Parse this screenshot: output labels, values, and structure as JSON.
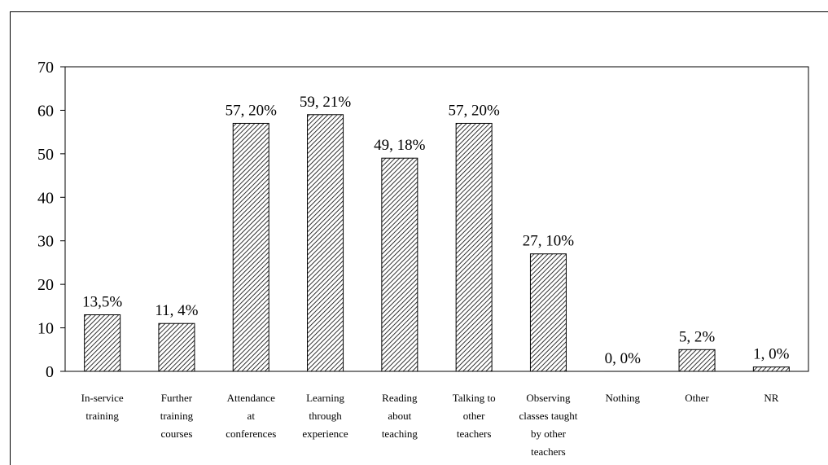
{
  "chart_data": {
    "type": "bar",
    "categories": [
      [
        "In-service",
        "training"
      ],
      [
        "Further",
        "training",
        "courses"
      ],
      [
        "Attendance",
        "at",
        "conferences"
      ],
      [
        "Learning",
        "through",
        "experience"
      ],
      [
        "Reading",
        "about",
        "teaching"
      ],
      [
        "Talking to",
        "other",
        "teachers"
      ],
      [
        "Observing",
        "classes taught",
        "by other",
        "teachers"
      ],
      [
        "Nothing"
      ],
      [
        "Other"
      ],
      [
        "NR"
      ]
    ],
    "values": [
      13,
      11,
      57,
      59,
      49,
      57,
      27,
      0,
      5,
      1
    ],
    "data_labels": [
      "13,5%",
      "11, 4%",
      "57, 20%",
      "59, 21%",
      "49, 18%",
      "57, 20%",
      "27, 10%",
      "0, 0%",
      "5, 2%",
      "1, 0%"
    ],
    "y_ticks": [
      0,
      10,
      20,
      30,
      40,
      50,
      60,
      70
    ],
    "ylim": [
      0,
      70
    ],
    "grid": false,
    "legend": "none",
    "bar_fill": "diagonal-hatch",
    "colors": {
      "bar_stroke": "#000000",
      "hatch": "#000000",
      "background": "#ffffff"
    }
  }
}
